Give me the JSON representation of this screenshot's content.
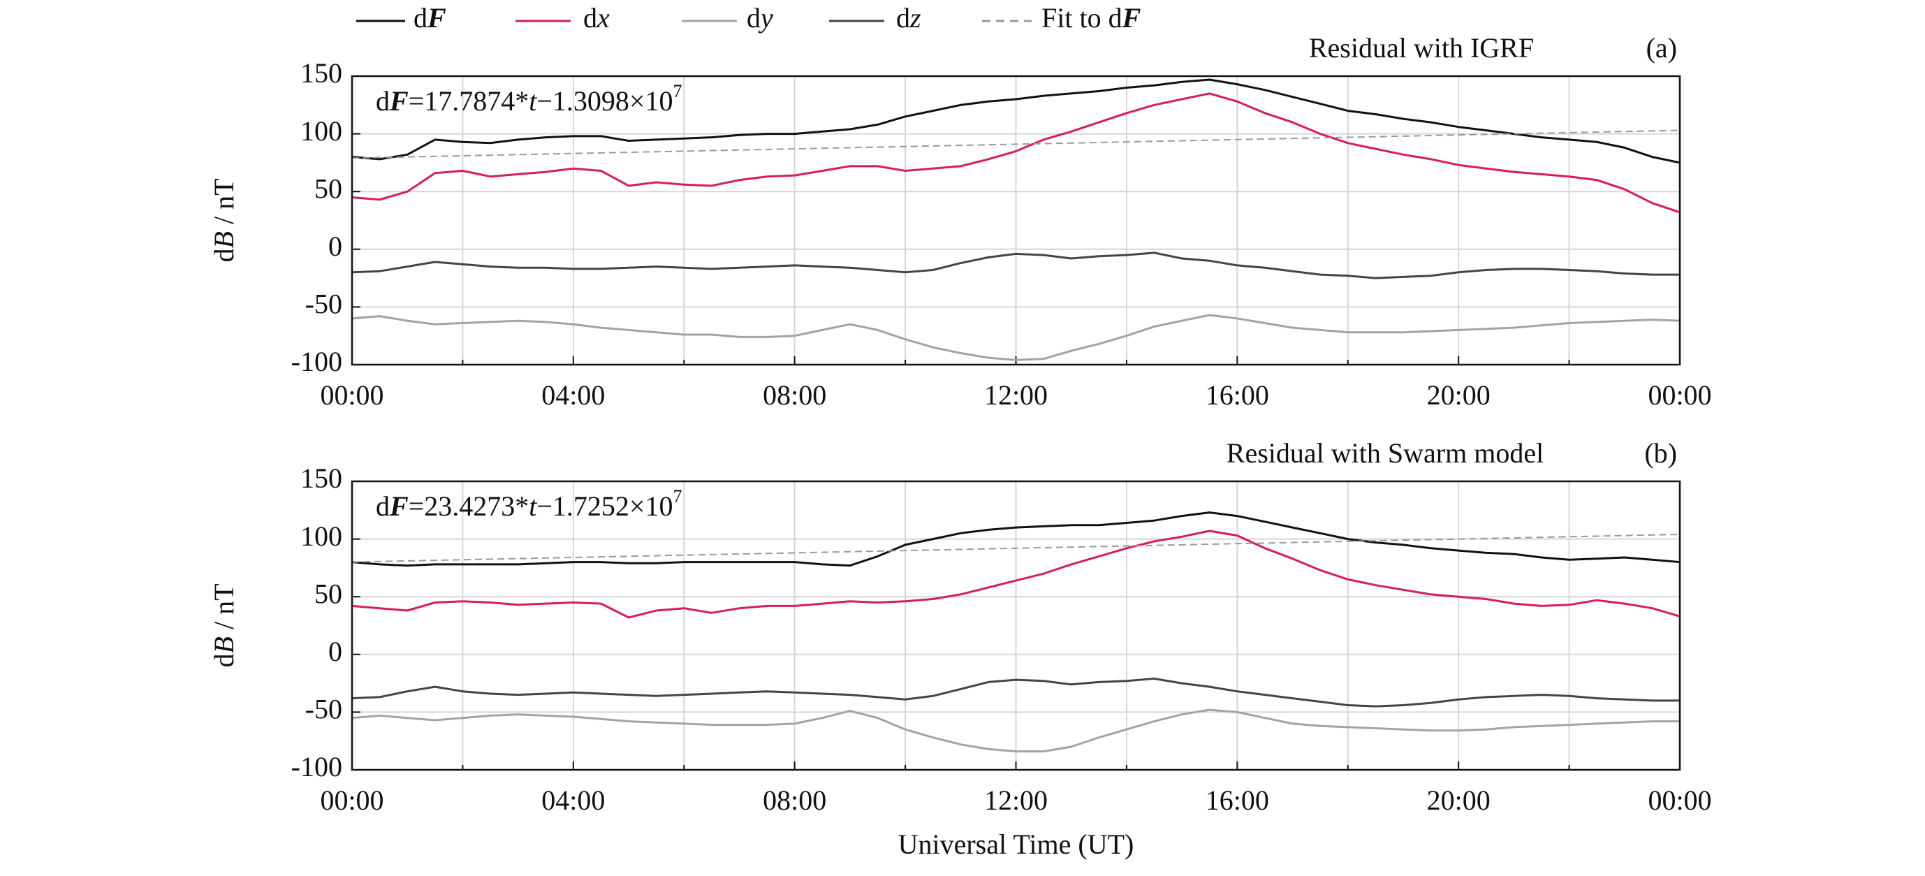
{
  "chart_data": [
    {
      "type": "line",
      "title": "Residual with IGRF",
      "panel_label": "(a)",
      "ylabel": "dB / nT",
      "equation": [
        "d",
        "F",
        "=17.7874*",
        "t",
        "−1.3098×10",
        "7"
      ],
      "x": [
        0,
        0.5,
        1,
        1.5,
        2,
        2.5,
        3,
        3.5,
        4,
        4.5,
        5,
        5.5,
        6,
        6.5,
        7,
        7.5,
        8,
        8.5,
        9,
        9.5,
        10,
        10.5,
        11,
        11.5,
        12,
        12.5,
        13,
        13.5,
        14,
        14.5,
        15,
        15.5,
        16,
        16.5,
        17,
        17.5,
        18,
        18.5,
        19,
        19.5,
        20,
        20.5,
        21,
        21.5,
        22,
        22.5,
        23,
        23.5,
        24
      ],
      "xlim": [
        0,
        24
      ],
      "xticks": [
        {
          "value": 0,
          "label": "00:00"
        },
        {
          "value": 4,
          "label": "04:00"
        },
        {
          "value": 8,
          "label": "08:00"
        },
        {
          "value": 12,
          "label": "12:00"
        },
        {
          "value": 16,
          "label": "16:00"
        },
        {
          "value": 20,
          "label": "20:00"
        },
        {
          "value": 24,
          "label": "00:00"
        }
      ],
      "x_minor_ticks": [
        2,
        6,
        10,
        14,
        18,
        22
      ],
      "ylim": [
        -100,
        150
      ],
      "yticks": [
        -100,
        -50,
        0,
        50,
        100,
        150
      ],
      "grid": true,
      "series": [
        {
          "name": "dF",
          "color": "#111111",
          "values": [
            80,
            78,
            82,
            95,
            93,
            92,
            95,
            97,
            98,
            98,
            94,
            95,
            96,
            97,
            99,
            100,
            100,
            102,
            104,
            108,
            115,
            120,
            125,
            128,
            130,
            133,
            135,
            137,
            140,
            142,
            145,
            147,
            143,
            138,
            132,
            126,
            120,
            117,
            113,
            110,
            106,
            103,
            100,
            97,
            95,
            93,
            88,
            80,
            75
          ]
        },
        {
          "name": "dx",
          "color": "#d81b60",
          "values": [
            45,
            43,
            50,
            66,
            68,
            63,
            65,
            67,
            70,
            68,
            55,
            58,
            56,
            55,
            60,
            63,
            64,
            68,
            72,
            72,
            68,
            70,
            72,
            78,
            85,
            95,
            102,
            110,
            118,
            125,
            130,
            135,
            128,
            118,
            110,
            100,
            92,
            87,
            82,
            78,
            73,
            70,
            67,
            65,
            63,
            60,
            52,
            40,
            32
          ]
        },
        {
          "name": "dy",
          "color": "#a3a3a3",
          "values": [
            -60,
            -58,
            -62,
            -65,
            -64,
            -63,
            -62,
            -63,
            -65,
            -68,
            -70,
            -72,
            -74,
            -74,
            -76,
            -76,
            -75,
            -70,
            -65,
            -70,
            -78,
            -85,
            -90,
            -94,
            -96,
            -95,
            -88,
            -82,
            -75,
            -67,
            -62,
            -57,
            -60,
            -64,
            -68,
            -70,
            -72,
            -72,
            -72,
            -71,
            -70,
            -69,
            -68,
            -66,
            -64,
            -63,
            -62,
            -61,
            -62
          ]
        },
        {
          "name": "dz",
          "color": "#444444",
          "values": [
            -20,
            -19,
            -15,
            -11,
            -13,
            -15,
            -16,
            -16,
            -17,
            -17,
            -16,
            -15,
            -16,
            -17,
            -16,
            -15,
            -14,
            -15,
            -16,
            -18,
            -20,
            -18,
            -12,
            -7,
            -4,
            -5,
            -8,
            -6,
            -5,
            -3,
            -8,
            -10,
            -14,
            -16,
            -19,
            -22,
            -23,
            -25,
            -24,
            -23,
            -20,
            -18,
            -17,
            -17,
            -18,
            -19,
            -21,
            -22,
            -22
          ]
        },
        {
          "name": "Fit to dF",
          "color": "#999999",
          "dashed": true,
          "x": [
            0,
            24
          ],
          "values": [
            79,
            103
          ]
        }
      ]
    },
    {
      "type": "line",
      "title": "Residual with Swarm model",
      "panel_label": "(b)",
      "ylabel": "dB / nT",
      "xlabel": "Universal Time (UT)",
      "equation": [
        "d",
        "F",
        "=23.4273*",
        "t",
        "−1.7252×10",
        "7"
      ],
      "x": [
        0,
        0.5,
        1,
        1.5,
        2,
        2.5,
        3,
        3.5,
        4,
        4.5,
        5,
        5.5,
        6,
        6.5,
        7,
        7.5,
        8,
        8.5,
        9,
        9.5,
        10,
        10.5,
        11,
        11.5,
        12,
        12.5,
        13,
        13.5,
        14,
        14.5,
        15,
        15.5,
        16,
        16.5,
        17,
        17.5,
        18,
        18.5,
        19,
        19.5,
        20,
        20.5,
        21,
        21.5,
        22,
        22.5,
        23,
        23.5,
        24
      ],
      "xlim": [
        0,
        24
      ],
      "xticks": [
        {
          "value": 0,
          "label": "00:00"
        },
        {
          "value": 4,
          "label": "04:00"
        },
        {
          "value": 8,
          "label": "08:00"
        },
        {
          "value": 12,
          "label": "12:00"
        },
        {
          "value": 16,
          "label": "16:00"
        },
        {
          "value": 20,
          "label": "20:00"
        },
        {
          "value": 24,
          "label": "00:00"
        }
      ],
      "x_minor_ticks": [
        2,
        6,
        10,
        14,
        18,
        22
      ],
      "ylim": [
        -100,
        150
      ],
      "yticks": [
        -100,
        -50,
        0,
        50,
        100,
        150
      ],
      "grid": true,
      "series": [
        {
          "name": "dF",
          "color": "#111111",
          "values": [
            80,
            78,
            77,
            78,
            78,
            78,
            78,
            79,
            80,
            80,
            79,
            79,
            80,
            80,
            80,
            80,
            80,
            78,
            77,
            85,
            95,
            100,
            105,
            108,
            110,
            111,
            112,
            112,
            114,
            116,
            120,
            123,
            120,
            115,
            110,
            105,
            100,
            97,
            95,
            92,
            90,
            88,
            87,
            84,
            82,
            83,
            84,
            82,
            80
          ]
        },
        {
          "name": "dx",
          "color": "#d81b60",
          "values": [
            42,
            40,
            38,
            45,
            46,
            45,
            43,
            44,
            45,
            44,
            32,
            38,
            40,
            36,
            40,
            42,
            42,
            44,
            46,
            45,
            46,
            48,
            52,
            58,
            64,
            70,
            78,
            85,
            92,
            98,
            102,
            107,
            103,
            92,
            83,
            73,
            65,
            60,
            56,
            52,
            50,
            48,
            44,
            42,
            43,
            47,
            44,
            40,
            33
          ]
        },
        {
          "name": "dy",
          "color": "#a3a3a3",
          "values": [
            -55,
            -53,
            -55,
            -57,
            -55,
            -53,
            -52,
            -53,
            -54,
            -56,
            -58,
            -59,
            -60,
            -61,
            -61,
            -61,
            -60,
            -55,
            -49,
            -55,
            -65,
            -72,
            -78,
            -82,
            -84,
            -84,
            -80,
            -72,
            -65,
            -58,
            -52,
            -48,
            -50,
            -55,
            -60,
            -62,
            -63,
            -64,
            -65,
            -66,
            -66,
            -65,
            -63,
            -62,
            -61,
            -60,
            -59,
            -58,
            -58
          ]
        },
        {
          "name": "dz",
          "color": "#444444",
          "values": [
            -38,
            -37,
            -32,
            -28,
            -32,
            -34,
            -35,
            -34,
            -33,
            -34,
            -35,
            -36,
            -35,
            -34,
            -33,
            -32,
            -33,
            -34,
            -35,
            -37,
            -39,
            -36,
            -30,
            -24,
            -22,
            -23,
            -26,
            -24,
            -23,
            -21,
            -25,
            -28,
            -32,
            -35,
            -38,
            -41,
            -44,
            -45,
            -44,
            -42,
            -39,
            -37,
            -36,
            -35,
            -36,
            -38,
            -39,
            -40,
            -40
          ]
        },
        {
          "name": "Fit to dF",
          "color": "#999999",
          "dashed": true,
          "x": [
            0,
            24
          ],
          "values": [
            80,
            104
          ]
        }
      ]
    }
  ]
}
